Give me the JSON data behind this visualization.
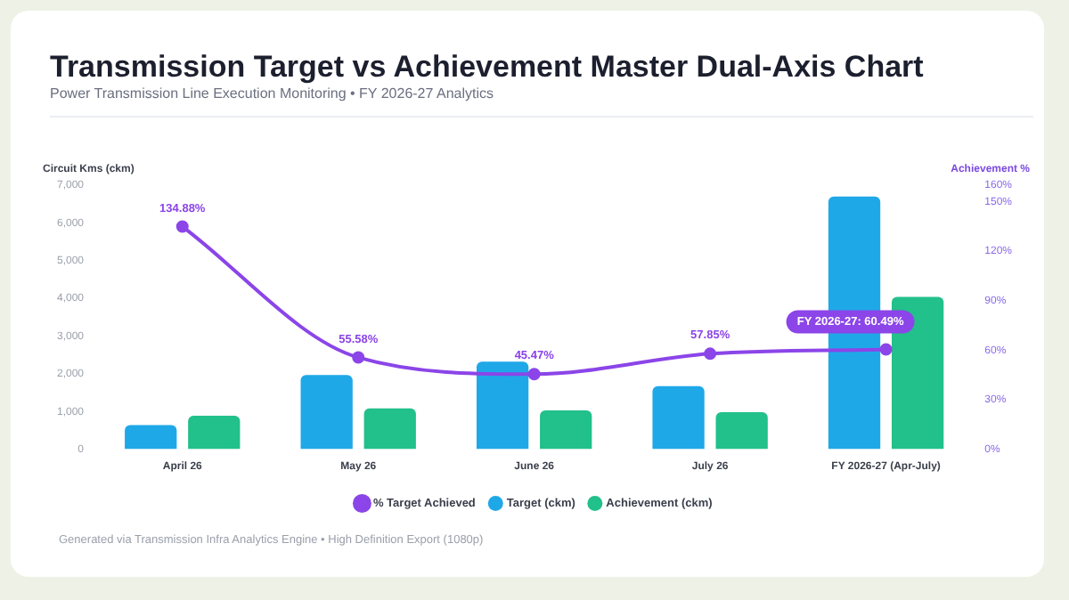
{
  "chart_data": {
    "type": "bar",
    "title": "Transmission Target vs Achievement Master Dual-Axis Chart",
    "subtitle": "Power Transmission Line Execution Monitoring • FY 2026-27 Analytics",
    "ylabel": "Circuit Kms (ckm)",
    "y2label": "Achievement %",
    "categories": [
      "April 26",
      "May 26",
      "June 26",
      "July 26",
      "FY 2026-27 (Apr-July)"
    ],
    "series": [
      {
        "name": "Target (ckm)",
        "color": "#1fa8e8",
        "values": [
          640,
          1970,
          2320,
          1670,
          6700
        ]
      },
      {
        "name": "Achievement (ckm)",
        "color": "#22c08a",
        "values": [
          890,
          1080,
          1030,
          980,
          4040
        ]
      },
      {
        "name": "% Target Achieved",
        "type": "line",
        "axis": "y2",
        "color": "#8b45e8",
        "values": [
          134.88,
          55.58,
          45.47,
          57.85,
          60.49
        ],
        "value_labels": [
          "134.88%",
          "55.58%",
          "45.47%",
          "57.85%",
          "FY 2026-27: 60.49%"
        ]
      }
    ],
    "ylim": [
      0,
      7000
    ],
    "yticks": [
      {
        "value": 0,
        "label": "0"
      },
      {
        "value": 1000,
        "label": "1,000"
      },
      {
        "value": 2000,
        "label": "2,000"
      },
      {
        "value": 3000,
        "label": "3,000"
      },
      {
        "value": 4000,
        "label": "4,000"
      },
      {
        "value": 5000,
        "label": "5,000"
      },
      {
        "value": 6000,
        "label": "6,000"
      },
      {
        "value": 7000,
        "label": "7,000"
      }
    ],
    "y2lim": [
      0,
      160
    ],
    "y2ticks": [
      {
        "value": 0,
        "label": "0%"
      },
      {
        "value": 30,
        "label": "30%"
      },
      {
        "value": 60,
        "label": "60%"
      },
      {
        "value": 90,
        "label": "90%"
      },
      {
        "value": 120,
        "label": "120%"
      },
      {
        "value": 150,
        "label": "150%"
      },
      {
        "value": 160,
        "label": "160%"
      }
    ],
    "grid": false,
    "legend": "bottom",
    "marker": "circle",
    "line_style": "solid",
    "annotations": [
      "Generated via Transmission Infra Analytics Engine • High Definition Export (1080p)"
    ]
  }
}
